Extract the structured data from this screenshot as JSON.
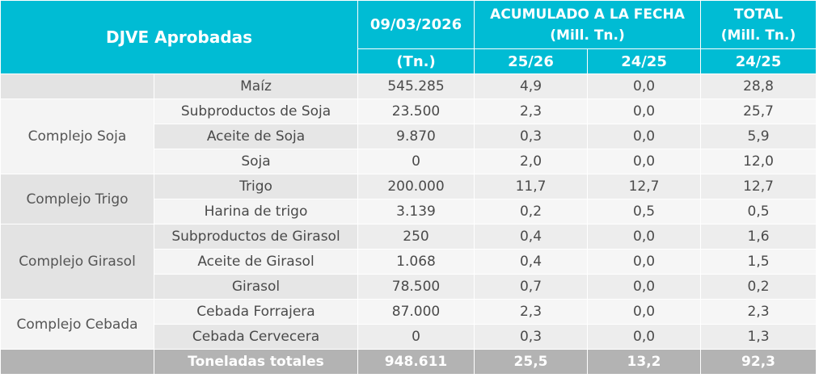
{
  "header": {
    "title": "DJVE Aprobadas",
    "date": "09/03/2026",
    "date_unit": "(Tn.)",
    "accum_label_1": "ACUMULADO A LA FECHA",
    "accum_label_2": "(Mill. Tn.)",
    "accum_col_a": "25/26",
    "accum_col_b": "24/25",
    "total_label_1": "TOTAL",
    "total_label_2": "(Mill. Tn.)",
    "total_col": "24/25"
  },
  "rows": [
    {
      "group": "",
      "product": "Maíz",
      "tn": "545.285",
      "acc_2526": "4,9",
      "acc_2425": "0,0",
      "total_2425": "28,8"
    },
    {
      "group": "Complejo Soja",
      "product": "Subproductos de Soja",
      "tn": "23.500",
      "acc_2526": "2,3",
      "acc_2425": "0,0",
      "total_2425": "25,7"
    },
    {
      "group": "",
      "product": "Aceite de Soja",
      "tn": "9.870",
      "acc_2526": "0,3",
      "acc_2425": "0,0",
      "total_2425": "5,9"
    },
    {
      "group": "",
      "product": "Soja",
      "tn": "0",
      "acc_2526": "2,0",
      "acc_2425": "0,0",
      "total_2425": "12,0"
    },
    {
      "group": "Complejo Trigo",
      "product": "Trigo",
      "tn": "200.000",
      "acc_2526": "11,7",
      "acc_2425": "12,7",
      "total_2425": "12,7"
    },
    {
      "group": "",
      "product": "Harina de trigo",
      "tn": "3.139",
      "acc_2526": "0,2",
      "acc_2425": "0,5",
      "total_2425": "0,5"
    },
    {
      "group": "Complejo Girasol",
      "product": "Subproductos de Girasol",
      "tn": "250",
      "acc_2526": "0,4",
      "acc_2425": "0,0",
      "total_2425": "1,6"
    },
    {
      "group": "",
      "product": "Aceite de Girasol",
      "tn": "1.068",
      "acc_2526": "0,4",
      "acc_2425": "0,0",
      "total_2425": "1,5"
    },
    {
      "group": "",
      "product": "Girasol",
      "tn": "78.500",
      "acc_2526": "0,7",
      "acc_2425": "0,0",
      "total_2425": "0,2"
    },
    {
      "group": "Complejo Cebada",
      "product": "Cebada Forrajera",
      "tn": "87.000",
      "acc_2526": "2,3",
      "acc_2425": "0,0",
      "total_2425": "2,3"
    },
    {
      "group": "",
      "product": "Cebada Cervecera",
      "tn": "0",
      "acc_2526": "0,3",
      "acc_2425": "0,0",
      "total_2425": "1,3"
    }
  ],
  "totals": {
    "label": "Toneladas totales",
    "tn": "948.611",
    "acc_2526": "25,5",
    "acc_2425": "13,2",
    "total_2425": "92,3"
  },
  "watermark_icon": "logo-watermark-icon",
  "colors": {
    "header": "#00bcd4",
    "footer": "#b3b3b3",
    "row": "#e6e6e6",
    "row_alt": "#f4f4f4"
  }
}
